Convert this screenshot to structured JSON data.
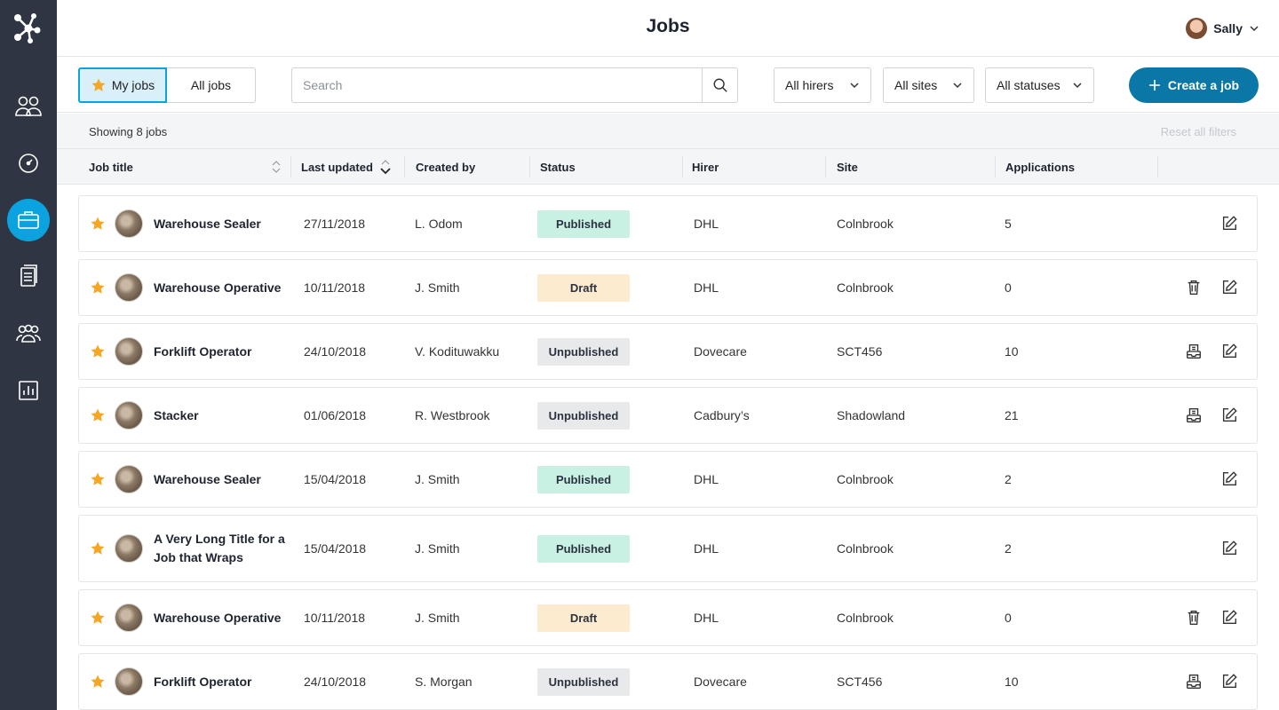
{
  "header": {
    "title": "Jobs",
    "user_name": "Sally"
  },
  "sidebar": {
    "items": [
      "workers",
      "dashboard",
      "jobs",
      "documents",
      "teams",
      "reports"
    ],
    "active": "jobs",
    "accent": "#0aa3e0"
  },
  "toolbar": {
    "my_jobs": "My jobs",
    "all_jobs": "All jobs",
    "search_placeholder": "Search",
    "hirers": "All hirers",
    "sites": "All sites",
    "statuses": "All statuses",
    "create": "Create a job"
  },
  "summary": {
    "showing": "Showing 8 jobs",
    "reset": "Reset all filters"
  },
  "columns": {
    "job_title": "Job title",
    "last_updated": "Last updated",
    "created_by": "Created by",
    "status": "Status",
    "hirer": "Hirer",
    "site": "Site",
    "applications": "Applications"
  },
  "rows": [
    {
      "title": "Warehouse Sealer",
      "updated": "27/11/2018",
      "created_by": "L. Odom",
      "status": "Published",
      "hirer": "DHL",
      "site": "Colnbrook",
      "applications": "5",
      "actions": [
        "edit"
      ]
    },
    {
      "title": "Warehouse Operative",
      "updated": "10/11/2018",
      "created_by": "J. Smith",
      "status": "Draft",
      "hirer": "DHL",
      "site": "Colnbrook",
      "applications": "0",
      "actions": [
        "delete",
        "edit"
      ]
    },
    {
      "title": "Forklift Operator",
      "updated": "24/10/2018",
      "created_by": "V. Kodituwakku",
      "status": "Unpublished",
      "hirer": "Dovecare",
      "site": "SCT456",
      "applications": "10",
      "actions": [
        "archive",
        "edit"
      ]
    },
    {
      "title": "Stacker",
      "updated": "01/06/2018",
      "created_by": "R. Westbrook",
      "status": "Unpublished",
      "hirer": "Cadbury’s",
      "site": "Shadowland",
      "applications": "21",
      "actions": [
        "archive",
        "edit"
      ]
    },
    {
      "title": "Warehouse Sealer",
      "updated": "15/04/2018",
      "created_by": "J. Smith",
      "status": "Published",
      "hirer": "DHL",
      "site": "Colnbrook",
      "applications": "2",
      "actions": [
        "edit"
      ]
    },
    {
      "title": "A Very Long Title for a Job that Wraps",
      "updated": "15/04/2018",
      "created_by": "J. Smith",
      "status": "Published",
      "hirer": "DHL",
      "site": "Colnbrook",
      "applications": "2",
      "actions": [
        "edit"
      ]
    },
    {
      "title": "Warehouse Operative",
      "updated": "10/11/2018",
      "created_by": "J. Smith",
      "status": "Draft",
      "hirer": "DHL",
      "site": "Colnbrook",
      "applications": "0",
      "actions": [
        "delete",
        "edit"
      ]
    },
    {
      "title": "Forklift Operator",
      "updated": "24/10/2018",
      "created_by": "S. Morgan",
      "status": "Unpublished",
      "hirer": "Dovecare",
      "site": "SCT456",
      "applications": "10",
      "actions": [
        "archive",
        "edit"
      ]
    }
  ],
  "colors": {
    "primary": "#0b77a6",
    "star": "#f5a623",
    "published": "#c8f1e4",
    "draft": "#fdebd0",
    "unpublished": "#e8e9eb"
  }
}
